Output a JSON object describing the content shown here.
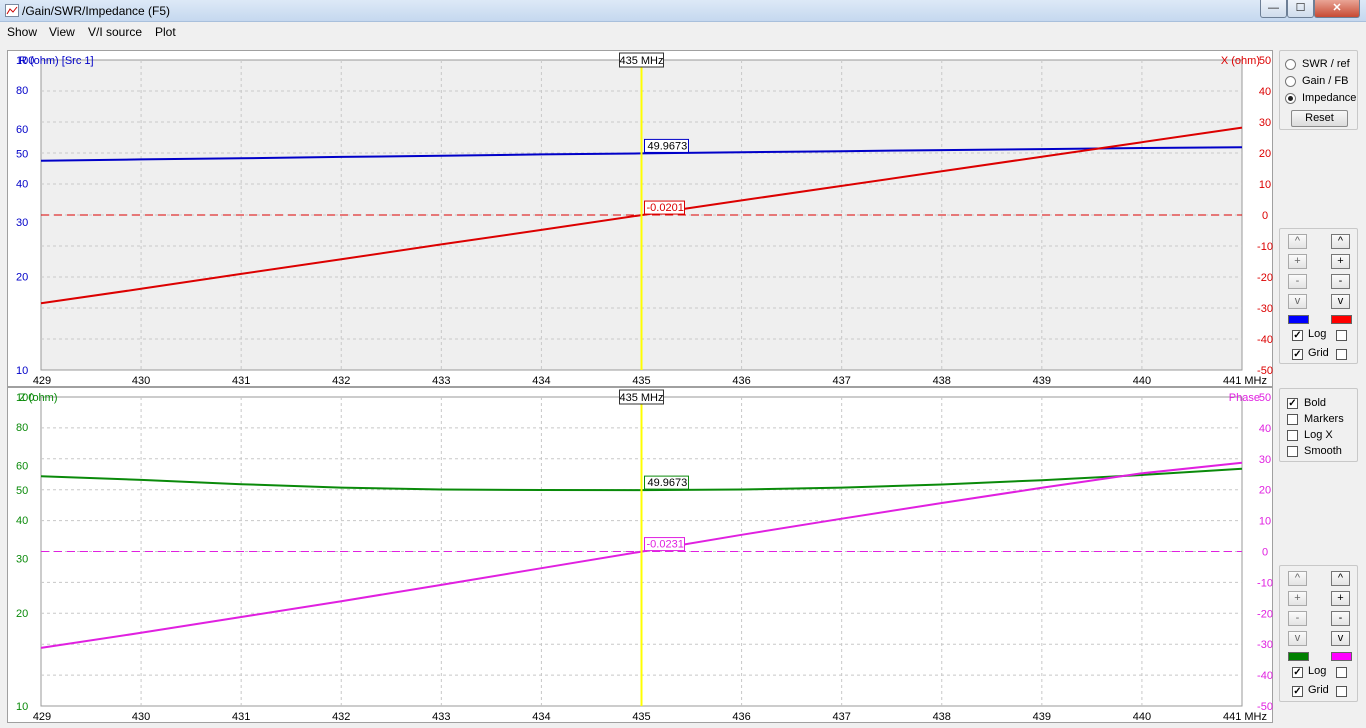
{
  "window": {
    "title": "/Gain/SWR/Impedance (F5)",
    "min_label": "—",
    "max_label": "☐",
    "close_label": "✕"
  },
  "menu": [
    "Show",
    "View",
    "V/I source",
    "Plot"
  ],
  "colors": {
    "r_series": "#0000c8",
    "x_series": "#dc0000",
    "z_series": "#0a8a0a",
    "phase_series": "#e020e0",
    "cursor": "#ffff00",
    "grid": "#c8c8c8",
    "plot_bg_top": "#efefef"
  },
  "mode_panel": {
    "options": [
      {
        "label": "SWR / ref",
        "selected": false
      },
      {
        "label": "Gain / FB",
        "selected": false
      },
      {
        "label": "Impedance",
        "selected": true
      }
    ],
    "reset_label": "Reset"
  },
  "top_scale_controls": {
    "left": {
      "buttons": [
        "^",
        "+",
        "-",
        "v"
      ],
      "color": "#0000ff"
    },
    "right": {
      "buttons": [
        "^",
        "+",
        "-",
        "v"
      ],
      "color": "#ff0000"
    },
    "log_label": "Log",
    "log_left": true,
    "log_right": false,
    "grid_label": "Grid",
    "grid_left": true,
    "grid_right": false
  },
  "options_panel": [
    {
      "label": "Bold",
      "checked": true
    },
    {
      "label": "Markers",
      "checked": false
    },
    {
      "label": "Log X",
      "checked": false
    },
    {
      "label": "Smooth",
      "checked": false
    }
  ],
  "bottom_scale_controls": {
    "left": {
      "buttons": [
        "^",
        "+",
        "-",
        "v"
      ],
      "color": "#008000"
    },
    "right": {
      "buttons": [
        "^",
        "+",
        "-",
        "v"
      ],
      "color": "#ff00ff"
    },
    "log_label": "Log",
    "log_left": true,
    "log_right": false,
    "grid_label": "Grid",
    "grid_left": true,
    "grid_right": false
  },
  "chart_data": [
    {
      "type": "line",
      "title": "",
      "cursor_label": "435 MHz",
      "cursor_x": 435,
      "xlabel": "",
      "x_unit_label": "441 MHz",
      "x_ticks": [
        "429",
        "430",
        "431",
        "432",
        "433",
        "434",
        "435",
        "436",
        "437",
        "438",
        "439",
        "440"
      ],
      "xlim": [
        429,
        441
      ],
      "left_axis": {
        "label": "R (ohm) [Src 1]",
        "scale": "log",
        "lim": [
          10,
          100
        ],
        "ticks": [
          "100",
          "80",
          "60",
          "50",
          "40",
          "30",
          "20",
          "10"
        ]
      },
      "right_axis": {
        "label": "X (ohm)",
        "scale": "linear",
        "lim": [
          -50,
          50
        ],
        "ticks": [
          "50",
          "40",
          "30",
          "20",
          "10",
          "0",
          "-10",
          "-20",
          "-30",
          "-40",
          "-50"
        ]
      },
      "series": [
        {
          "name": "R",
          "axis": "left",
          "x": [
            429,
            430,
            431,
            432,
            433,
            434,
            435,
            436,
            437,
            438,
            439,
            440,
            441
          ],
          "y": [
            47.3,
            47.8,
            48.2,
            48.7,
            49.1,
            49.6,
            49.9673,
            50.4,
            50.8,
            51.2,
            51.6,
            52.0,
            52.3
          ]
        },
        {
          "name": "X",
          "axis": "right",
          "x": [
            429,
            430,
            431,
            432,
            433,
            434,
            435,
            436,
            437,
            438,
            439,
            440,
            441
          ],
          "y": [
            -28.5,
            -23.8,
            -19.0,
            -14.3,
            -9.5,
            -4.8,
            -0.0201,
            4.7,
            9.4,
            14.1,
            18.8,
            23.5,
            28.2
          ]
        }
      ],
      "zero_line": 0,
      "readouts": [
        "49.9673",
        "-0.0201"
      ],
      "grid": true
    },
    {
      "type": "line",
      "title": "",
      "cursor_label": "435 MHz",
      "cursor_x": 435,
      "xlabel": "",
      "x_unit_label": "441 MHz",
      "x_ticks": [
        "429",
        "430",
        "431",
        "432",
        "433",
        "434",
        "435",
        "436",
        "437",
        "438",
        "439",
        "440"
      ],
      "xlim": [
        429,
        441
      ],
      "left_axis": {
        "label": "Z (ohm)",
        "scale": "log",
        "lim": [
          10,
          100
        ],
        "ticks": [
          "100",
          "80",
          "60",
          "50",
          "40",
          "30",
          "20",
          "10"
        ]
      },
      "right_axis": {
        "label": "Phase",
        "scale": "linear",
        "lim": [
          -50,
          50
        ],
        "ticks": [
          "50",
          "40",
          "30",
          "20",
          "10",
          "0",
          "-10",
          "-20",
          "-30",
          "-40",
          "-50"
        ]
      },
      "series": [
        {
          "name": "Z",
          "axis": "left",
          "x": [
            429,
            430,
            431,
            432,
            433,
            434,
            435,
            436,
            437,
            438,
            439,
            440,
            441
          ],
          "y": [
            55.4,
            53.9,
            52.2,
            50.9,
            50.2,
            50.0,
            49.9673,
            50.2,
            50.9,
            52.1,
            53.8,
            55.9,
            58.6
          ]
        },
        {
          "name": "Phase",
          "axis": "right",
          "x": [
            429,
            430,
            431,
            432,
            433,
            434,
            435,
            436,
            437,
            438,
            439,
            440,
            441
          ],
          "y": [
            -31.2,
            -26.3,
            -21.2,
            -16.1,
            -10.8,
            -5.4,
            -0.0231,
            5.4,
            10.6,
            15.7,
            20.6,
            25.3,
            28.7
          ]
        }
      ],
      "zero_line": 0,
      "readouts": [
        "49.9673",
        "-0.0231"
      ],
      "grid": true
    }
  ]
}
